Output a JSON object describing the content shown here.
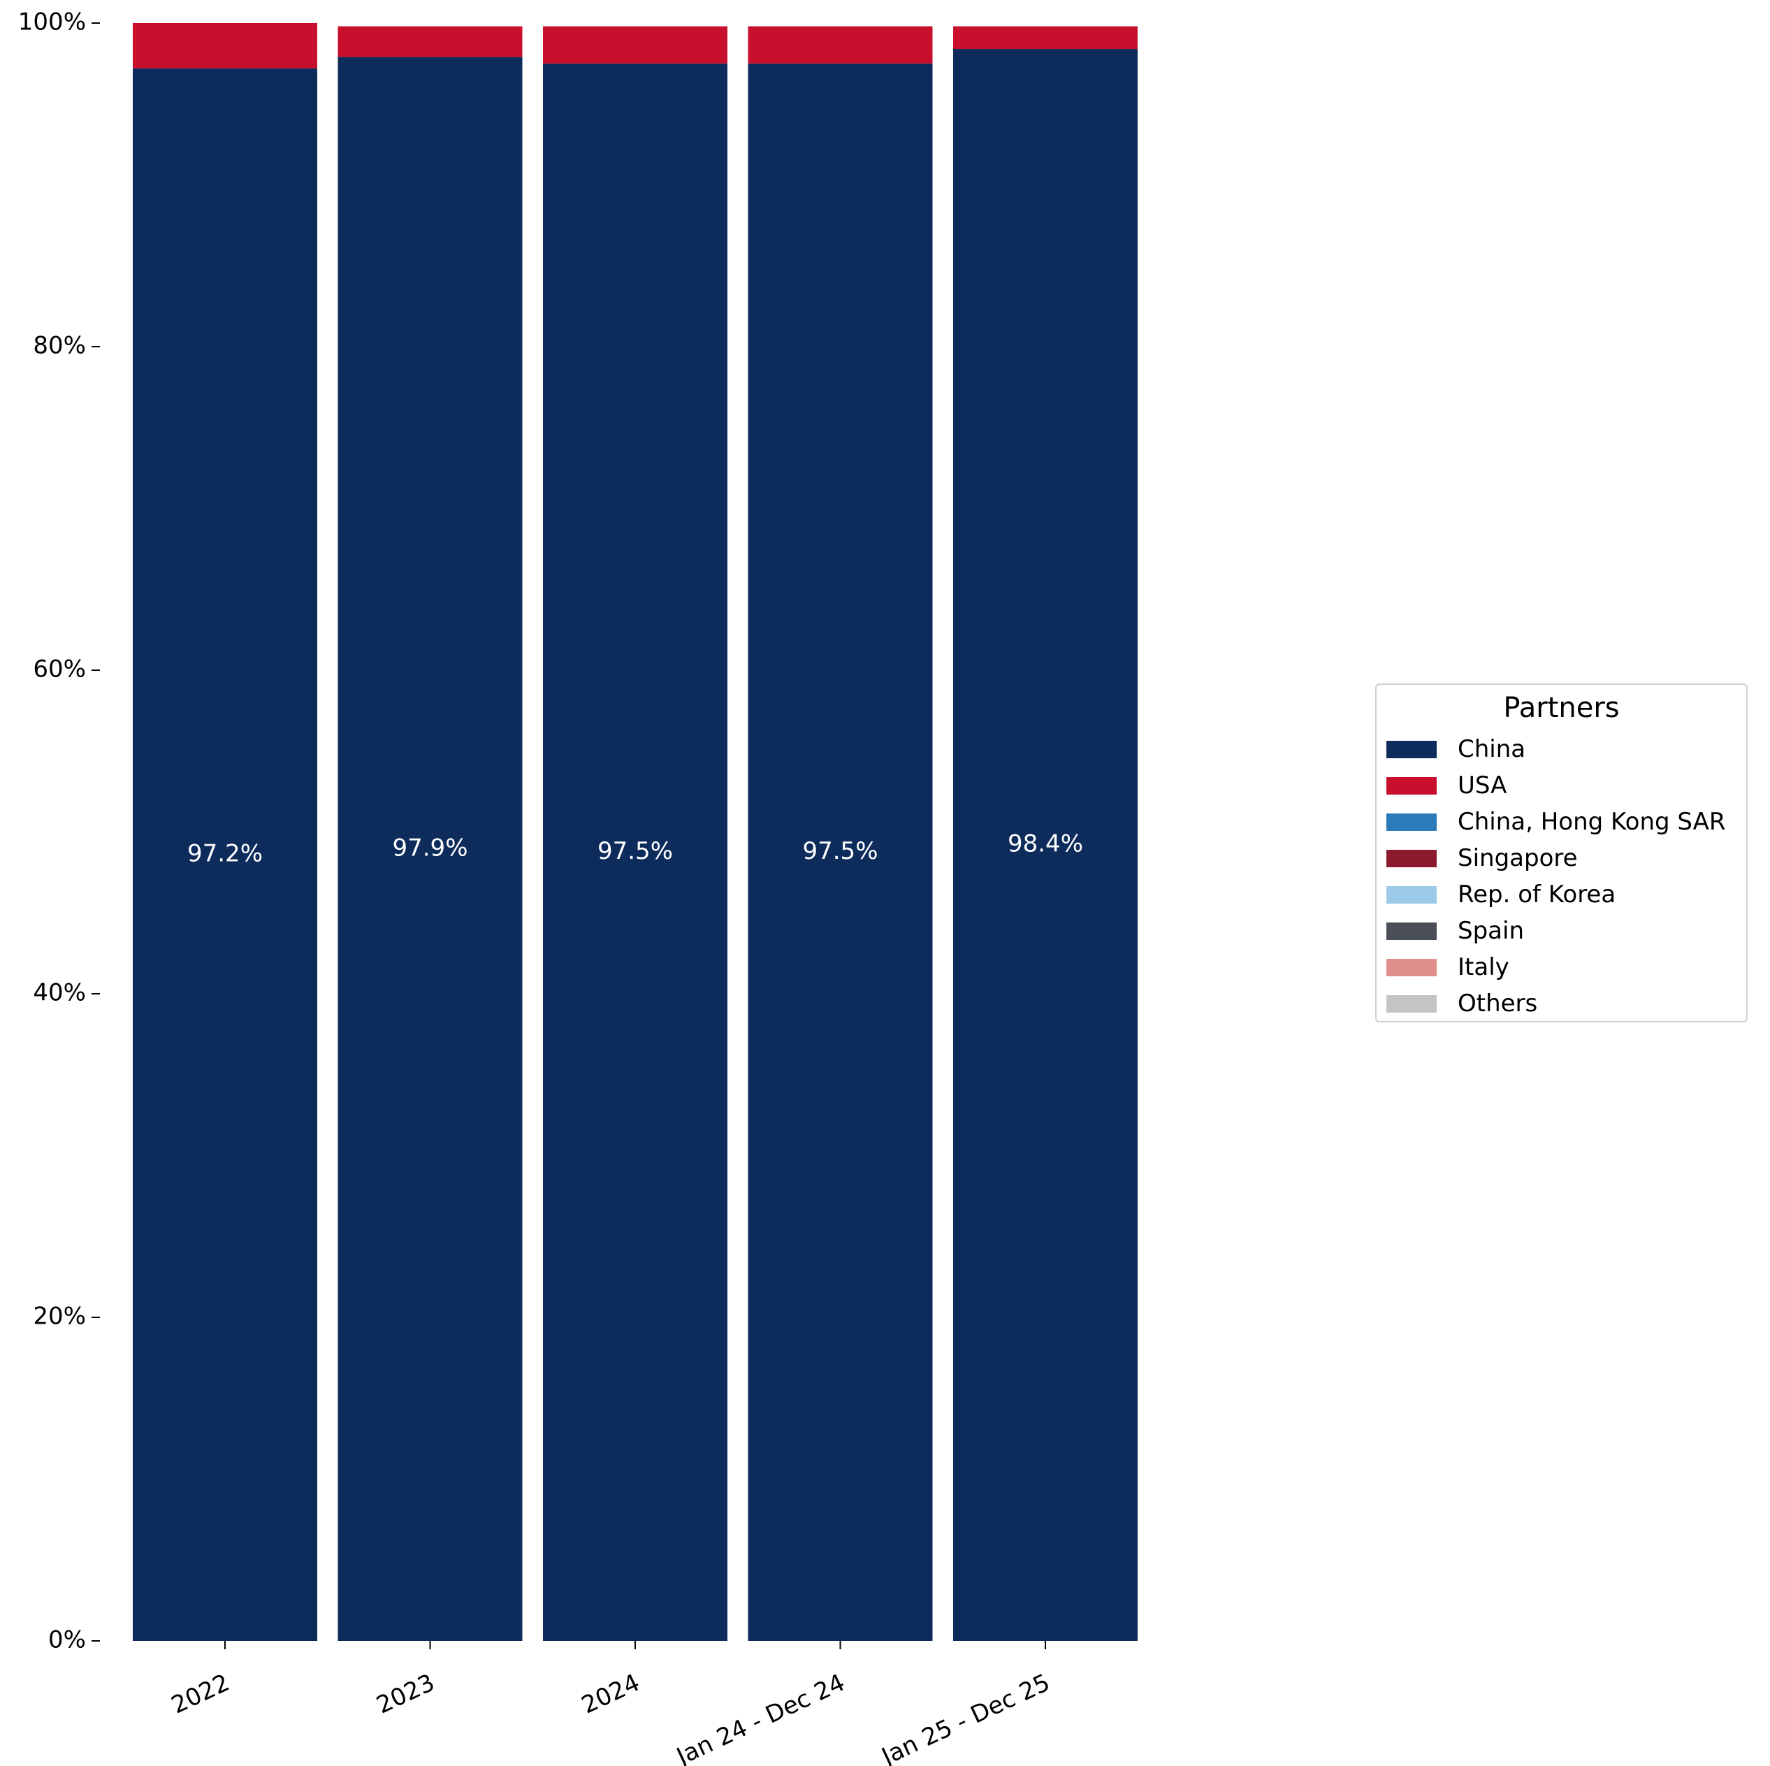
{
  "chart_data": {
    "type": "bar",
    "stacked": true,
    "categories": [
      "2022",
      "2023",
      "2024",
      "Jan 24 - Dec 24",
      "Jan 25 - Dec 25"
    ],
    "series": [
      {
        "name": "China",
        "color": "#0d2c5c",
        "values": [
          97.2,
          97.9,
          97.5,
          97.5,
          98.4
        ]
      },
      {
        "name": "USA",
        "color": "#c8102e",
        "values": [
          2.8,
          1.9,
          2.3,
          2.3,
          1.4
        ]
      },
      {
        "name": "China, Hong Kong SAR",
        "color": "#2b7bba",
        "values": [
          0,
          0,
          0,
          0,
          0
        ]
      },
      {
        "name": "Singapore",
        "color": "#8b1a2f",
        "values": [
          0,
          0,
          0,
          0,
          0
        ]
      },
      {
        "name": "Rep. of Korea",
        "color": "#9ecae9",
        "values": [
          0,
          0,
          0,
          0,
          0
        ]
      },
      {
        "name": "Spain",
        "color": "#4a4f57",
        "values": [
          0,
          0,
          0,
          0,
          0
        ]
      },
      {
        "name": "Italy",
        "color": "#e08e8b",
        "values": [
          0,
          0,
          0,
          0,
          0
        ]
      },
      {
        "name": "Others",
        "color": "#c4c4c4",
        "values": [
          0,
          0,
          0,
          0,
          0
        ]
      }
    ],
    "data_labels": [
      "97.2%",
      "97.9%",
      "97.5%",
      "97.5%",
      "98.4%"
    ],
    "yticks": [
      "0%",
      "20%",
      "40%",
      "60%",
      "80%",
      "100%"
    ],
    "ylim": [
      0,
      100
    ],
    "legend": {
      "title": "Partners",
      "placement": "right"
    },
    "grid": false
  }
}
